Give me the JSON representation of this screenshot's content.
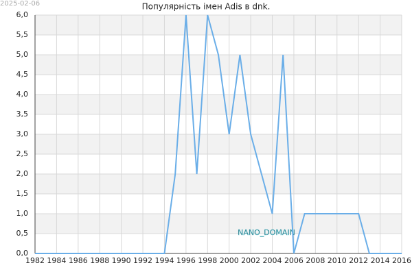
{
  "chart_data": {
    "type": "line",
    "title": "Популярність імен Adis в dnk.",
    "date": "2025-02-06",
    "watermark": "NANO_DOMAIN",
    "x": [
      1982,
      1983,
      1984,
      1985,
      1986,
      1987,
      1988,
      1989,
      1990,
      1991,
      1992,
      1993,
      1994,
      1995,
      1996,
      1997,
      1998,
      1999,
      2000,
      2001,
      2002,
      2003,
      2004,
      2005,
      2006,
      2007,
      2008,
      2009,
      2010,
      2011,
      2012,
      2013,
      2014,
      2015,
      2016
    ],
    "series": [
      {
        "color": "#6aaee8",
        "values": [
          0,
          0,
          0,
          0,
          0,
          0,
          0,
          0,
          0,
          0,
          0,
          0,
          0,
          2,
          6,
          2,
          6,
          5,
          3,
          5,
          3,
          2,
          1,
          5,
          0,
          1,
          1,
          1,
          1,
          1,
          1,
          0,
          0,
          0,
          0
        ]
      }
    ],
    "xlim": [
      1982,
      2016
    ],
    "xticks": [
      1982,
      1984,
      1986,
      1988,
      1990,
      1992,
      1994,
      1996,
      1998,
      2000,
      2002,
      2004,
      2006,
      2008,
      2010,
      2012,
      2014,
      2016
    ],
    "ylim": [
      0,
      6
    ],
    "yticks": [
      {
        "value": 0,
        "label": "0,0"
      },
      {
        "value": 0.5,
        "label": "0,5"
      },
      {
        "value": 1,
        "label": "1,0"
      },
      {
        "value": 1.5,
        "label": "1,5"
      },
      {
        "value": 2,
        "label": "2,0"
      },
      {
        "value": 2.5,
        "label": "2,5"
      },
      {
        "value": 3,
        "label": "3,0"
      },
      {
        "value": 3.5,
        "label": "3,5"
      },
      {
        "value": 4,
        "label": "4,0"
      },
      {
        "value": 4.5,
        "label": "4,5"
      },
      {
        "value": 5,
        "label": "5,0"
      },
      {
        "value": 5.5,
        "label": "5,5"
      },
      {
        "value": 6,
        "label": "6,0"
      }
    ],
    "grid": true
  }
}
